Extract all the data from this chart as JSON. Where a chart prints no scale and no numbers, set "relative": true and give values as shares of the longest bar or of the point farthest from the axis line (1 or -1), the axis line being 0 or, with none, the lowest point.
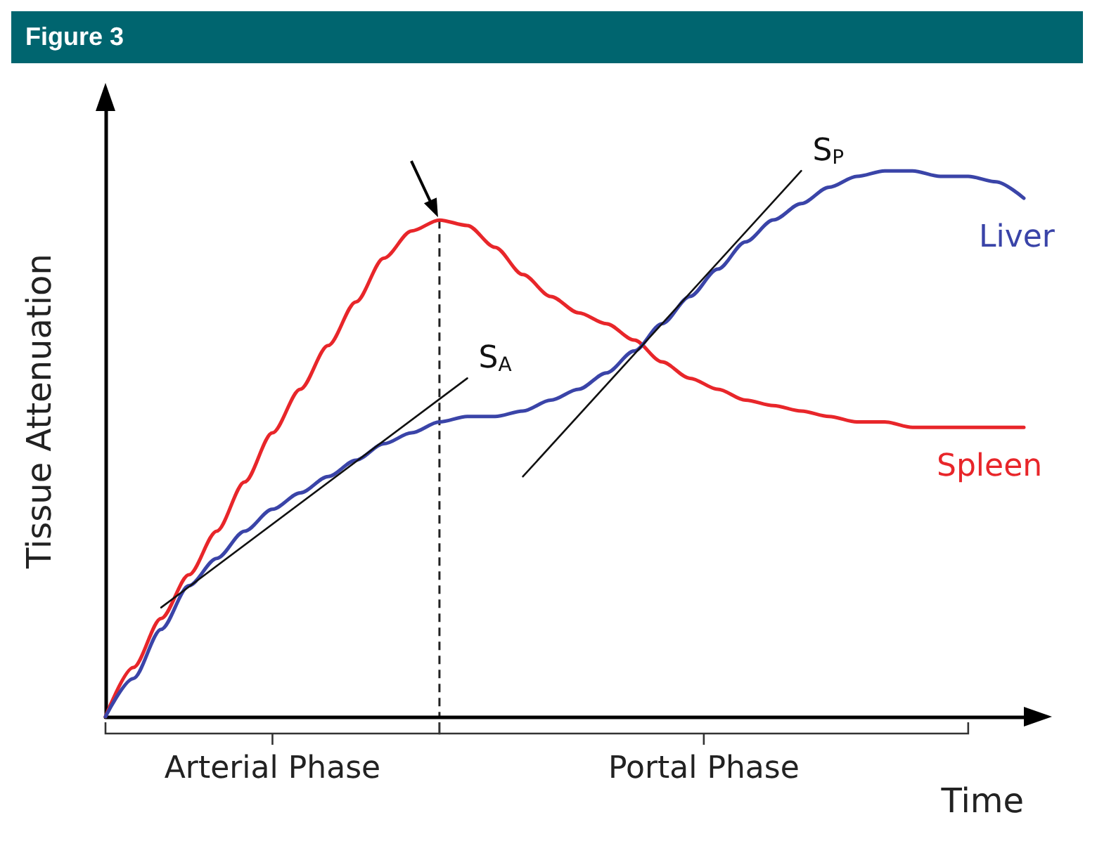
{
  "chart_data": {
    "type": "line",
    "title": "Figure 3",
    "xlabel": "Time",
    "ylabel": "Tissue Attenuation",
    "relative": true,
    "legend": false,
    "grid": false,
    "marker": "none",
    "categories": [
      null,
      null,
      null,
      null,
      null,
      null,
      null,
      null,
      null,
      null,
      null,
      null,
      null,
      null,
      null,
      null,
      null,
      null,
      null,
      null,
      null,
      null,
      null,
      null,
      null,
      null,
      null,
      null,
      null,
      null,
      null,
      null,
      null,
      null
    ],
    "series": [
      {
        "name": "Spleen",
        "color": "#e8262a",
        "values": [
          0,
          0.09,
          0.18,
          0.26,
          0.34,
          0.43,
          0.52,
          0.6,
          0.68,
          0.76,
          0.84,
          0.89,
          0.91,
          0.9,
          0.86,
          0.81,
          0.77,
          0.74,
          0.72,
          0.69,
          0.65,
          0.62,
          0.6,
          0.58,
          0.57,
          0.56,
          0.55,
          0.54,
          0.54,
          0.53,
          0.53,
          0.53,
          0.53,
          0.53
        ]
      },
      {
        "name": "Liver",
        "color": "#3a44a8",
        "values": [
          0,
          0.07,
          0.16,
          0.24,
          0.29,
          0.34,
          0.38,
          0.41,
          0.44,
          0.47,
          0.5,
          0.52,
          0.54,
          0.55,
          0.55,
          0.56,
          0.58,
          0.6,
          0.63,
          0.67,
          0.72,
          0.77,
          0.82,
          0.87,
          0.91,
          0.94,
          0.97,
          0.99,
          1,
          1,
          0.99,
          0.99,
          0.98,
          0.95
        ]
      },
      {
        "name": "S$_{A}$",
        "color": "#111111",
        "values": [
          null,
          null,
          0.2,
          null,
          null,
          null,
          null,
          null,
          null,
          null,
          null,
          null,
          null,
          0.62,
          null,
          null,
          null,
          null,
          null,
          null,
          null,
          null,
          null,
          null,
          null,
          null,
          null,
          null,
          null,
          null,
          null,
          null,
          null,
          null
        ]
      },
      {
        "name": "S$_{P}$",
        "color": "#111111",
        "values": [
          null,
          null,
          null,
          null,
          null,
          null,
          null,
          null,
          null,
          null,
          null,
          null,
          null,
          null,
          null,
          0.44,
          null,
          null,
          null,
          null,
          null,
          null,
          null,
          null,
          null,
          1,
          null,
          null,
          null,
          null,
          null,
          null,
          null,
          null
        ]
      }
    ],
    "annotations": [
      "Arterial Phase",
      "Portal Phase"
    ]
  }
}
